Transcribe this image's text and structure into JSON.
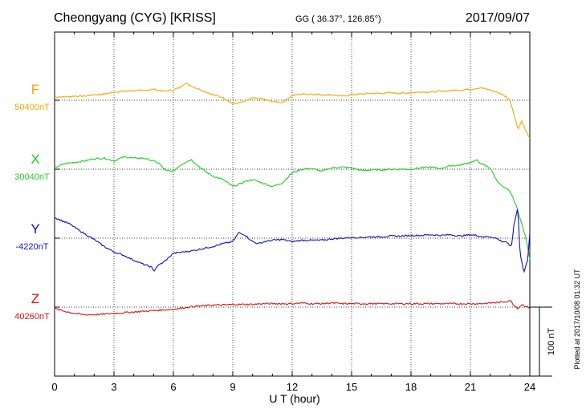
{
  "header": {
    "station": "Cheongyang (CYG)  [KRISS]",
    "coords": "GG ( 36.37°, 126.85°)",
    "date": "2017/09/07"
  },
  "plotted_note": "Plotted at 2017/10/08 01:32 UT",
  "colors": {
    "F": "#f0a800",
    "X": "#22cc22",
    "Y": "#1111cc",
    "Z": "#dd1111"
  },
  "chart_data": {
    "type": "line",
    "xlabel": "U T (hour)",
    "xlim": [
      0,
      24
    ],
    "xticks": [
      "0",
      "3",
      "6",
      "9",
      "12",
      "15",
      "18",
      "21",
      "24"
    ],
    "scale_label": "100 nT",
    "scale_nT": 100,
    "series": [
      {
        "name": "F",
        "baseline_label": "50400nT",
        "x": [
          0,
          0.5,
          1,
          1.5,
          2,
          2.5,
          3,
          3.5,
          4,
          4.5,
          5,
          5.5,
          6,
          6.3,
          6.6,
          6.9,
          7.2,
          7.5,
          8,
          8.5,
          9,
          9.5,
          10,
          10.5,
          11,
          11.5,
          12,
          12.5,
          13,
          13.5,
          14,
          14.5,
          15,
          15.5,
          16,
          16.5,
          17,
          17.5,
          18,
          18.5,
          19,
          19.5,
          20,
          20.5,
          21,
          21.5,
          22,
          22.5,
          22.8,
          23,
          23.2,
          23.4,
          23.6,
          23.8,
          24
        ],
        "values": [
          5,
          5,
          6,
          6,
          8,
          9,
          12,
          13,
          14,
          14,
          16,
          13,
          15,
          18,
          25,
          21,
          17,
          14,
          8,
          4,
          -5,
          -3,
          3,
          2,
          -2,
          -3,
          7,
          9,
          9,
          8,
          8,
          6,
          8,
          9,
          10,
          10,
          11,
          10,
          11,
          12,
          12,
          13,
          14,
          15,
          16,
          18,
          15,
          10,
          5,
          0,
          -20,
          -42,
          -30,
          -45,
          -55
        ]
      },
      {
        "name": "X",
        "baseline_label": "30040nT",
        "x": [
          0,
          0.5,
          1,
          1.5,
          2,
          2.5,
          3,
          3.5,
          4,
          4.5,
          5,
          5.3,
          5.6,
          6,
          6.3,
          6.6,
          6.9,
          7.2,
          7.6,
          8,
          8.5,
          9,
          9.3,
          9.6,
          10,
          10.5,
          11,
          11.5,
          12,
          12.5,
          13,
          13.5,
          14,
          14.5,
          15,
          15.5,
          16,
          16.5,
          17,
          17.5,
          18,
          18.5,
          19,
          19.5,
          20,
          20.5,
          21,
          21.3,
          21.6,
          22,
          22.3,
          22.6,
          23,
          23.2,
          23.4,
          23.6,
          23.8,
          24
        ],
        "values": [
          2,
          8,
          10,
          12,
          15,
          16,
          12,
          18,
          16,
          16,
          12,
          8,
          -2,
          -3,
          5,
          10,
          14,
          6,
          -3,
          -10,
          -15,
          -25,
          -22,
          -18,
          -15,
          -20,
          -25,
          -20,
          -5,
          0,
          1,
          -3,
          2,
          3,
          2,
          -2,
          -1,
          -1,
          0,
          0,
          0,
          2,
          3,
          1,
          5,
          6,
          10,
          13,
          7,
          2,
          -15,
          -25,
          -32,
          -45,
          -60,
          -80,
          -100,
          -130
        ]
      },
      {
        "name": "Y",
        "baseline_label": "-4220nT",
        "x": [
          0,
          0.4,
          0.8,
          1.2,
          1.6,
          2,
          2.5,
          3,
          3.5,
          4,
          4.5,
          4.9,
          5,
          5.2,
          5.5,
          6,
          6.5,
          7,
          7.5,
          8,
          8.5,
          9,
          9.3,
          9.6,
          10,
          10.3,
          10.6,
          11,
          11.5,
          12,
          12.5,
          13,
          13.5,
          14,
          14.5,
          15,
          15.5,
          16,
          16.5,
          17,
          17.5,
          18,
          18.5,
          19,
          19.5,
          20,
          20.5,
          21,
          21.3,
          21.6,
          22,
          22.3,
          22.6,
          22.8,
          23,
          23.1,
          23.2,
          23.4,
          23.5,
          23.7,
          23.9,
          24
        ],
        "values": [
          30,
          25,
          20,
          12,
          5,
          -2,
          -12,
          -20,
          -25,
          -32,
          -38,
          -42,
          -48,
          -40,
          -35,
          -22,
          -20,
          -18,
          -15,
          -12,
          -8,
          -5,
          8,
          5,
          -5,
          -8,
          -5,
          -3,
          -2,
          -5,
          -3,
          -3,
          -3,
          -1,
          0,
          1,
          1,
          2,
          2,
          3,
          3,
          4,
          4,
          5,
          4,
          5,
          3,
          5,
          4,
          2,
          2,
          0,
          -5,
          -5,
          -12,
          -8,
          20,
          45,
          -20,
          -50,
          -30,
          10
        ]
      },
      {
        "name": "Z",
        "baseline_label": "40260nT",
        "x": [
          0,
          0.5,
          1,
          1.5,
          2,
          2.5,
          3,
          3.5,
          4,
          4.5,
          5,
          5.5,
          6,
          6.5,
          7,
          7.5,
          8,
          8.5,
          9,
          9.5,
          10,
          10.5,
          11,
          11.5,
          12,
          12.5,
          13,
          13.5,
          14,
          14.5,
          15,
          15.5,
          16,
          16.5,
          17,
          17.5,
          18,
          18.5,
          19,
          19.5,
          20,
          20.5,
          21,
          21.5,
          22,
          22.5,
          22.8,
          23,
          23.2,
          23.4,
          23.6,
          23.8,
          24
        ],
        "values": [
          -2,
          -6,
          -9,
          -11,
          -11,
          -10,
          -9,
          -8,
          -7,
          -6,
          -5,
          -4,
          -3,
          -1,
          1,
          2,
          3,
          3,
          4,
          4,
          4,
          5,
          5,
          5,
          5,
          6,
          5,
          5,
          6,
          5,
          5,
          5,
          5,
          5,
          5,
          5,
          5,
          5,
          5,
          5,
          5,
          5,
          5,
          5,
          6,
          7,
          8,
          10,
          3,
          -2,
          4,
          1,
          -1
        ]
      }
    ]
  }
}
